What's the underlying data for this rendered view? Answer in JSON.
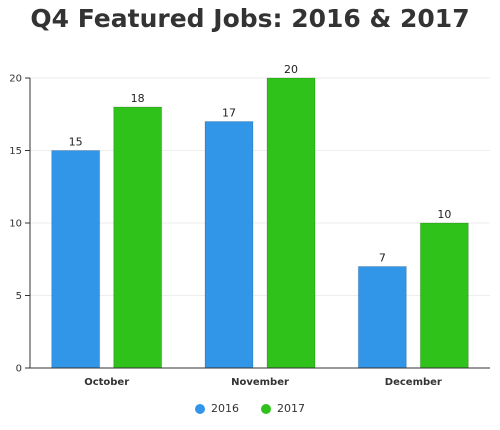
{
  "chart_data": {
    "type": "bar",
    "title": "Q4 Featured Jobs: 2016 & 2017",
    "categories": [
      "October",
      "November",
      "December"
    ],
    "series": [
      {
        "name": "2016",
        "values": [
          15,
          17,
          7
        ],
        "color": "#3196e8"
      },
      {
        "name": "2017",
        "values": [
          18,
          20,
          10
        ],
        "color": "#2ec21b"
      }
    ],
    "yticks": [
      "0",
      "5",
      "10",
      "15",
      "20"
    ],
    "ylim": [
      0,
      20
    ],
    "xlabel": "",
    "ylabel": "",
    "grid": true,
    "legend": "bottom-center"
  }
}
